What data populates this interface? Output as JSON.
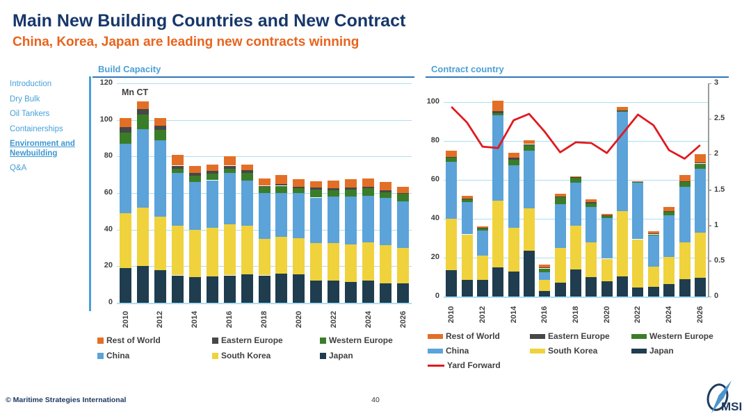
{
  "header": {
    "title": "Main New Building Countries and New Contract",
    "subtitle": "China, Korea, Japan are leading new contracts winning"
  },
  "sidebar": {
    "items": [
      {
        "label": "Introduction",
        "active": false
      },
      {
        "label": "Dry Bulk",
        "active": false
      },
      {
        "label": "Oil Tankers",
        "active": false
      },
      {
        "label": "Containerships",
        "active": false
      },
      {
        "label": "Environment and Newbuilding",
        "active": true
      },
      {
        "label": "Q&A",
        "active": false
      }
    ]
  },
  "colors": {
    "title_navy": "#17376b",
    "subtitle_orange": "#e8641e",
    "accent_blue": "#4ba0d6",
    "underline_blue": "#2e75b6",
    "gridline": "#a9dff3",
    "axis_text": "#404040",
    "right_axis": "#9b9b9b",
    "japan": "#1f3d4f",
    "south_korea": "#f0d23d",
    "china": "#5ba3d9",
    "western_europe": "#3a7d29",
    "eastern_europe": "#474747",
    "rest_of_world": "#e36f26",
    "yard_forward": "#e0191f"
  },
  "chart_data": [
    {
      "type": "bar",
      "title": "Build Capacity",
      "unit_label": "Mn CT",
      "ylim": [
        0,
        120
      ],
      "yticks": [
        120,
        100,
        80,
        60,
        40,
        20,
        0
      ],
      "grid": "on",
      "categories": [
        "2010",
        "2011",
        "2012",
        "2013",
        "2014",
        "2015",
        "2016",
        "2017",
        "2018",
        "2019",
        "2020",
        "2021",
        "2022",
        "2023",
        "2024",
        "2025",
        "2026"
      ],
      "x_tick_labels": [
        "2010",
        "2012",
        "2014",
        "2016",
        "2018",
        "2020",
        "2022",
        "2024",
        "2026"
      ],
      "series": [
        {
          "name": "Japan",
          "color_key": "japan",
          "values": [
            19,
            20,
            18,
            15,
            14,
            14.5,
            15,
            15.5,
            15,
            16,
            15.5,
            12,
            12,
            11.5,
            12,
            10.5,
            10.5
          ]
        },
        {
          "name": "South Korea",
          "color_key": "south_korea",
          "values": [
            30,
            32,
            29,
            27,
            26,
            26.5,
            28,
            26.5,
            20,
            20,
            20,
            20.5,
            20.5,
            20.5,
            21,
            21,
            19.5
          ]
        },
        {
          "name": "China",
          "color_key": "china",
          "values": [
            38,
            43,
            42,
            29,
            26,
            26,
            28,
            25,
            25,
            24,
            24.5,
            25,
            25.5,
            26,
            25.5,
            26,
            25.5
          ]
        },
        {
          "name": "Western Europe",
          "color_key": "western_europe",
          "values": [
            6,
            8,
            5.5,
            2.5,
            3.5,
            3.5,
            2.5,
            4,
            3.5,
            4,
            2.5,
            4.5,
            3.5,
            4,
            4,
            3,
            4
          ]
        },
        {
          "name": "Eastern Europe",
          "color_key": "eastern_europe",
          "values": [
            3,
            3,
            2.5,
            1.5,
            1.5,
            1.5,
            1.5,
            1.5,
            0.5,
            1,
            1,
            1,
            1,
            1,
            1,
            1,
            0.5
          ]
        },
        {
          "name": "Rest of World",
          "color_key": "rest_of_world",
          "values": [
            5,
            4,
            4,
            6,
            4,
            3.5,
            5,
            3,
            4,
            5,
            4,
            3.5,
            4.5,
            4.5,
            4.5,
            4.5,
            3.5
          ]
        }
      ],
      "legend_rows": [
        [
          "Rest of World",
          "Eastern Europe",
          "Western Europe"
        ],
        [
          "China",
          "South Korea",
          "Japan"
        ]
      ],
      "legend_position": "bottom"
    },
    {
      "type": "bar+line",
      "title": "Contract country",
      "ylim": [
        0,
        100
      ],
      "yticks": [
        100,
        80,
        60,
        40,
        20,
        0
      ],
      "y2lim": [
        0,
        3
      ],
      "y2ticks": [
        3,
        2.5,
        2,
        1.5,
        1,
        0.5,
        0
      ],
      "grid": "on",
      "categories": [
        "2010",
        "2011",
        "2012",
        "2013",
        "2014",
        "2015",
        "2016",
        "2017",
        "2018",
        "2019",
        "2020",
        "2021",
        "2022",
        "2023",
        "2024",
        "2025",
        "2026"
      ],
      "x_tick_labels": [
        "2010",
        "2012",
        "2014",
        "2016",
        "2018",
        "2020",
        "2022",
        "2024",
        "2026"
      ],
      "series": [
        {
          "name": "Japan",
          "color_key": "japan",
          "values": [
            13.5,
            8.5,
            8.5,
            15,
            13,
            23.5,
            3,
            7,
            14,
            10,
            8,
            10.5,
            4.5,
            5,
            6.5,
            9,
            9.5
          ]
        },
        {
          "name": "South Korea",
          "color_key": "south_korea",
          "values": [
            26.5,
            23.5,
            12.5,
            34.5,
            22.5,
            22,
            5.5,
            18,
            22.5,
            18,
            11.5,
            33.5,
            25,
            10.5,
            14,
            19,
            23.5
          ]
        },
        {
          "name": "China",
          "color_key": "china",
          "values": [
            29.5,
            16.5,
            13,
            44,
            32,
            29.5,
            4,
            22.5,
            22,
            18,
            21,
            51,
            29,
            16,
            21.5,
            28.5,
            33
          ]
        },
        {
          "name": "Western Europe",
          "color_key": "western_europe",
          "values": [
            2,
            1.5,
            1,
            1,
            3,
            3,
            2,
            3.5,
            2.5,
            2,
            1,
            0.5,
            0.5,
            0.5,
            1.5,
            2.5,
            2.5
          ]
        },
        {
          "name": "Eastern Europe",
          "color_key": "eastern_europe",
          "values": [
            0.5,
            0.5,
            0.5,
            1,
            1,
            0.5,
            0.5,
            0.5,
            0.5,
            0.5,
            0.5,
            0.5,
            0,
            0.5,
            0.5,
            0.5,
            0.5
          ]
        },
        {
          "name": "Rest of World",
          "color_key": "rest_of_world",
          "values": [
            3,
            1.5,
            0.5,
            5.5,
            2.5,
            2,
            1.5,
            1.5,
            0.5,
            1.5,
            0.5,
            1.5,
            0.5,
            1,
            2,
            3,
            4.5
          ]
        }
      ],
      "line_series": {
        "name": "Yard Forward",
        "color_key": "yard_forward",
        "axis": "right",
        "values": [
          2.67,
          2.45,
          2.11,
          2.09,
          2.48,
          2.57,
          2.32,
          2.03,
          2.17,
          2.16,
          2.02,
          2.29,
          2.56,
          2.41,
          2.06,
          1.94,
          2.13
        ]
      },
      "legend_rows": [
        [
          "Rest of World",
          "Eastern Europe",
          "Western Europe"
        ],
        [
          "China",
          "South Korea",
          "Japan"
        ],
        [
          "Yard Forward"
        ]
      ],
      "legend_position": "bottom"
    }
  ],
  "footer": {
    "copyright": "© Maritime Strategies International",
    "page": "40",
    "logo_text": "MSI"
  }
}
